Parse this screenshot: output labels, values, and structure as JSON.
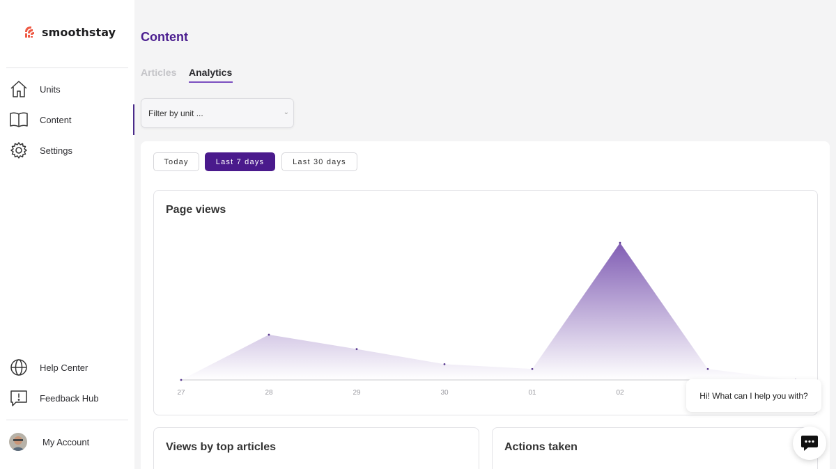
{
  "brand": {
    "name": "smoothstay",
    "logo_icon": "sunrise-stripes-logo",
    "accent": "#4a1a8c",
    "logo_color": "#ee5a45"
  },
  "sidebar": {
    "items": [
      {
        "label": "Units",
        "icon": "home-icon"
      },
      {
        "label": "Content",
        "icon": "book-icon",
        "active": true
      },
      {
        "label": "Settings",
        "icon": "gear-icon"
      }
    ],
    "bottom_items": [
      {
        "label": "Help Center",
        "icon": "globe-icon"
      },
      {
        "label": "Feedback Hub",
        "icon": "feedback-icon"
      }
    ],
    "account": {
      "label": "My Account",
      "icon": "avatar"
    }
  },
  "page": {
    "title": "Content",
    "tabs": [
      {
        "label": "Articles",
        "active": false
      },
      {
        "label": "Analytics",
        "active": true
      }
    ],
    "filter": {
      "placeholder": "Filter by unit ..."
    },
    "ranges": [
      {
        "label": "Today",
        "active": false
      },
      {
        "label": "Last 7 days",
        "active": true
      },
      {
        "label": "Last 30 days",
        "active": false
      }
    ]
  },
  "chart_data": {
    "type": "area",
    "title": "Page views",
    "x": [
      "27",
      "28",
      "29",
      "30",
      "01",
      "02",
      "03",
      "04"
    ],
    "xlabels_visible": [
      "27",
      "28",
      "29",
      "30",
      "01",
      "02"
    ],
    "values": [
      0,
      6.6,
      4.5,
      2.3,
      1.6,
      20,
      1.6,
      0
    ],
    "ylim": [
      0,
      20
    ],
    "grid": false,
    "legend": false,
    "color": "#7a55b0"
  },
  "sections": {
    "top_articles_title": "Views by top articles",
    "actions_title": "Actions taken"
  },
  "chat": {
    "greeting": "Hi! What can I help you with?",
    "icon": "chat-icon"
  }
}
